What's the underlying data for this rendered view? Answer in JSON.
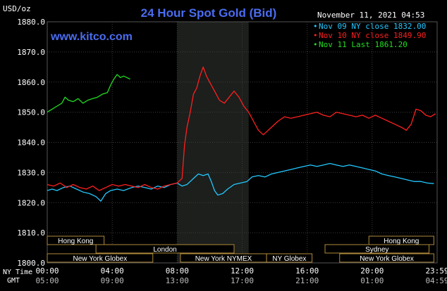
{
  "chart_data": {
    "type": "line",
    "title": "24 Hour Spot Gold (Bid)",
    "date_label": "November 11, 2021 04:53",
    "brand": "www.kitco.com",
    "ylabel": "USD/oz",
    "ylim": [
      1800,
      1880
    ],
    "yticks": [
      "1880.0",
      "1870.0",
      "1860.0",
      "1850.0",
      "1840.0",
      "1830.0",
      "1820.0",
      "1810.0",
      "1800.0"
    ],
    "ytick_values": [
      1880,
      1870,
      1860,
      1850,
      1840,
      1830,
      1820,
      1810,
      1800
    ],
    "xlim": [
      0,
      24
    ],
    "xaxis_ny_label": "NY Time",
    "xaxis_gmt_label": "GMT",
    "xticks_ny": [
      "00:00",
      "04:00",
      "08:00",
      "12:00",
      "16:00",
      "20:00",
      "23:59"
    ],
    "xticks_gmt": [
      "05:00",
      "09:00",
      "13:00",
      "17:00",
      "21:00",
      "01:00",
      "04:59"
    ],
    "xtick_hours": [
      0,
      4,
      8,
      12,
      16,
      20,
      24
    ],
    "shaded_interval": [
      8,
      12.4
    ],
    "grid": true,
    "legend_position": "top-right",
    "colors": {
      "background": "#000000",
      "grid": "#3c3c3c",
      "shade": "#1c1f1c",
      "axis_text": "#ffffff",
      "title": "#4a6cf0",
      "brand": "#4a6cf0",
      "market_box": "#b08a3a"
    },
    "series": [
      {
        "name": "Nov 09 NY close 1832.00",
        "color": "#22c8ff",
        "points": [
          [
            0,
            1824
          ],
          [
            0.3,
            1824.5
          ],
          [
            0.6,
            1824
          ],
          [
            1,
            1825
          ],
          [
            1.4,
            1825.5
          ],
          [
            1.8,
            1824.5
          ],
          [
            2.2,
            1823.5
          ],
          [
            2.6,
            1823
          ],
          [
            3,
            1822
          ],
          [
            3.3,
            1820.5
          ],
          [
            3.6,
            1823
          ],
          [
            3.9,
            1824
          ],
          [
            4.3,
            1824.5
          ],
          [
            4.7,
            1824
          ],
          [
            5.2,
            1825
          ],
          [
            5.6,
            1825.5
          ],
          [
            6,
            1825
          ],
          [
            6.4,
            1824.5
          ],
          [
            6.8,
            1825.5
          ],
          [
            7.2,
            1825
          ],
          [
            7.6,
            1826
          ],
          [
            8,
            1826.5
          ],
          [
            8.3,
            1825.5
          ],
          [
            8.6,
            1826
          ],
          [
            8.8,
            1827
          ],
          [
            9,
            1828
          ],
          [
            9.3,
            1829.5
          ],
          [
            9.6,
            1829
          ],
          [
            9.9,
            1829.5
          ],
          [
            10.1,
            1827
          ],
          [
            10.3,
            1824
          ],
          [
            10.5,
            1822.5
          ],
          [
            10.8,
            1823
          ],
          [
            11.1,
            1824.5
          ],
          [
            11.5,
            1826
          ],
          [
            11.9,
            1826.5
          ],
          [
            12.3,
            1827
          ],
          [
            12.6,
            1828.5
          ],
          [
            13,
            1829
          ],
          [
            13.4,
            1828.5
          ],
          [
            13.8,
            1829.5
          ],
          [
            14.2,
            1830
          ],
          [
            14.6,
            1830.5
          ],
          [
            15,
            1831
          ],
          [
            15.4,
            1831.5
          ],
          [
            15.8,
            1832
          ],
          [
            16.2,
            1832.5
          ],
          [
            16.6,
            1832
          ],
          [
            17,
            1832.5
          ],
          [
            17.4,
            1833
          ],
          [
            17.8,
            1832.5
          ],
          [
            18.2,
            1832
          ],
          [
            18.6,
            1832.5
          ],
          [
            19,
            1832
          ],
          [
            19.4,
            1831.5
          ],
          [
            19.8,
            1831
          ],
          [
            20.2,
            1830.5
          ],
          [
            20.6,
            1829.5
          ],
          [
            21,
            1829
          ],
          [
            21.4,
            1828.5
          ],
          [
            21.8,
            1828
          ],
          [
            22.2,
            1827.5
          ],
          [
            22.6,
            1827
          ],
          [
            23,
            1827
          ],
          [
            23.4,
            1826.5
          ],
          [
            23.8,
            1826.3
          ]
        ]
      },
      {
        "name": "Nov 10 NY close 1849.90",
        "color": "#ff1f1f",
        "points": [
          [
            0,
            1826
          ],
          [
            0.4,
            1825.5
          ],
          [
            0.8,
            1826.5
          ],
          [
            1.2,
            1825
          ],
          [
            1.6,
            1826
          ],
          [
            2,
            1825
          ],
          [
            2.4,
            1824.5
          ],
          [
            2.8,
            1825.5
          ],
          [
            3.2,
            1824
          ],
          [
            3.6,
            1825
          ],
          [
            4,
            1826
          ],
          [
            4.4,
            1825.5
          ],
          [
            4.8,
            1826
          ],
          [
            5.2,
            1825.5
          ],
          [
            5.6,
            1825
          ],
          [
            6,
            1826
          ],
          [
            6.4,
            1825
          ],
          [
            6.8,
            1824.5
          ],
          [
            7.2,
            1825.5
          ],
          [
            7.6,
            1826
          ],
          [
            8,
            1826.5
          ],
          [
            8.3,
            1828
          ],
          [
            8.45,
            1839
          ],
          [
            8.6,
            1845
          ],
          [
            8.8,
            1850
          ],
          [
            9,
            1856
          ],
          [
            9.2,
            1858
          ],
          [
            9.4,
            1862
          ],
          [
            9.6,
            1865
          ],
          [
            9.8,
            1862
          ],
          [
            10,
            1860
          ],
          [
            10.3,
            1857
          ],
          [
            10.6,
            1854
          ],
          [
            10.9,
            1853
          ],
          [
            11.2,
            1855
          ],
          [
            11.5,
            1857
          ],
          [
            11.8,
            1855
          ],
          [
            12.1,
            1852
          ],
          [
            12.4,
            1850
          ],
          [
            12.7,
            1847
          ],
          [
            13,
            1844
          ],
          [
            13.3,
            1842.5
          ],
          [
            13.6,
            1844
          ],
          [
            13.9,
            1845.5
          ],
          [
            14.2,
            1847
          ],
          [
            14.6,
            1848.5
          ],
          [
            15,
            1848
          ],
          [
            15.4,
            1848.5
          ],
          [
            15.8,
            1849
          ],
          [
            16.2,
            1849.5
          ],
          [
            16.6,
            1850
          ],
          [
            17,
            1849
          ],
          [
            17.4,
            1848.5
          ],
          [
            17.8,
            1850
          ],
          [
            18.2,
            1849.5
          ],
          [
            18.6,
            1849
          ],
          [
            19,
            1848.5
          ],
          [
            19.4,
            1849
          ],
          [
            19.8,
            1848
          ],
          [
            20.2,
            1849
          ],
          [
            20.6,
            1848
          ],
          [
            21,
            1847
          ],
          [
            21.4,
            1846
          ],
          [
            21.8,
            1845
          ],
          [
            22.1,
            1844
          ],
          [
            22.4,
            1846
          ],
          [
            22.7,
            1851
          ],
          [
            23,
            1850.5
          ],
          [
            23.3,
            1849
          ],
          [
            23.6,
            1848.5
          ],
          [
            23.9,
            1849.5
          ]
        ]
      },
      {
        "name": "Nov 11 Last 1861.20",
        "color": "#22dd22",
        "points": [
          [
            0,
            1850
          ],
          [
            0.3,
            1851
          ],
          [
            0.6,
            1852
          ],
          [
            0.9,
            1853
          ],
          [
            1.1,
            1855
          ],
          [
            1.3,
            1854
          ],
          [
            1.6,
            1853.5
          ],
          [
            1.9,
            1854.5
          ],
          [
            2.2,
            1853
          ],
          [
            2.5,
            1854
          ],
          [
            2.8,
            1854.5
          ],
          [
            3.1,
            1855
          ],
          [
            3.4,
            1856
          ],
          [
            3.7,
            1856.5
          ],
          [
            3.9,
            1859
          ],
          [
            4.1,
            1861
          ],
          [
            4.3,
            1862.5
          ],
          [
            4.5,
            1861.5
          ],
          [
            4.7,
            1862
          ],
          [
            4.9,
            1861.5
          ],
          [
            5.1,
            1861
          ]
        ]
      }
    ],
    "market_sessions": [
      {
        "label": "Hong Kong",
        "start": 0,
        "end": 3.5,
        "row": 0
      },
      {
        "label": "London",
        "start": 3,
        "end": 11.5,
        "row": 1
      },
      {
        "label": "New York Globex",
        "start": 0,
        "end": 6.5,
        "row": 2
      },
      {
        "label": "New York NYMEX",
        "start": 8.2,
        "end": 13.5,
        "row": 2
      },
      {
        "label": "NY Globex",
        "start": 13.5,
        "end": 16.3,
        "row": 2
      },
      {
        "label": "Hong Kong",
        "start": 19.8,
        "end": 23.8,
        "row": 0
      },
      {
        "label": "Sydney",
        "start": 17.1,
        "end": 23.5,
        "row": 1
      },
      {
        "label": "New York Globex",
        "start": 18,
        "end": 23.8,
        "row": 2
      }
    ]
  }
}
